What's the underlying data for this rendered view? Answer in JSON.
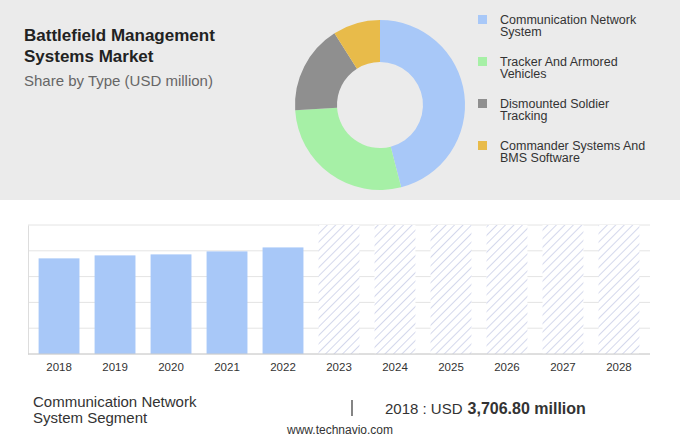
{
  "chart_data": [
    {
      "type": "donut",
      "title": "Battlefield Management Systems Market",
      "subtitle": "Share by Type (USD million)",
      "categories": [
        "Communication Network System",
        "Tracker And Armored Vehicles",
        "Dismounted Soldier Tracking",
        "Commander Systems And BMS Software"
      ],
      "values": [
        46,
        28,
        17,
        9
      ],
      "colors": [
        "#a8c8f8",
        "#a6f0a6",
        "#8f8f8f",
        "#e8bb4a"
      ],
      "legend": "right"
    },
    {
      "type": "bar",
      "categories": [
        "2018",
        "2019",
        "2020",
        "2021",
        "2022",
        "2023",
        "2024",
        "2025",
        "2026",
        "2027",
        "2028"
      ],
      "values": [
        3706.8,
        3822,
        3861,
        3977,
        4131,
        null,
        null,
        null,
        null,
        null,
        null
      ],
      "color": "#a8c8f8",
      "ylim": [
        0,
        5000
      ],
      "yticks": [
        0,
        1000,
        2000,
        3000,
        4000,
        5000
      ],
      "grid": true,
      "tick_labels": "x",
      "annotations": [
        "Communication Network System Segment",
        "2018 : USD",
        "3,706.80 million",
        "www.technavio.com"
      ]
    }
  ]
}
